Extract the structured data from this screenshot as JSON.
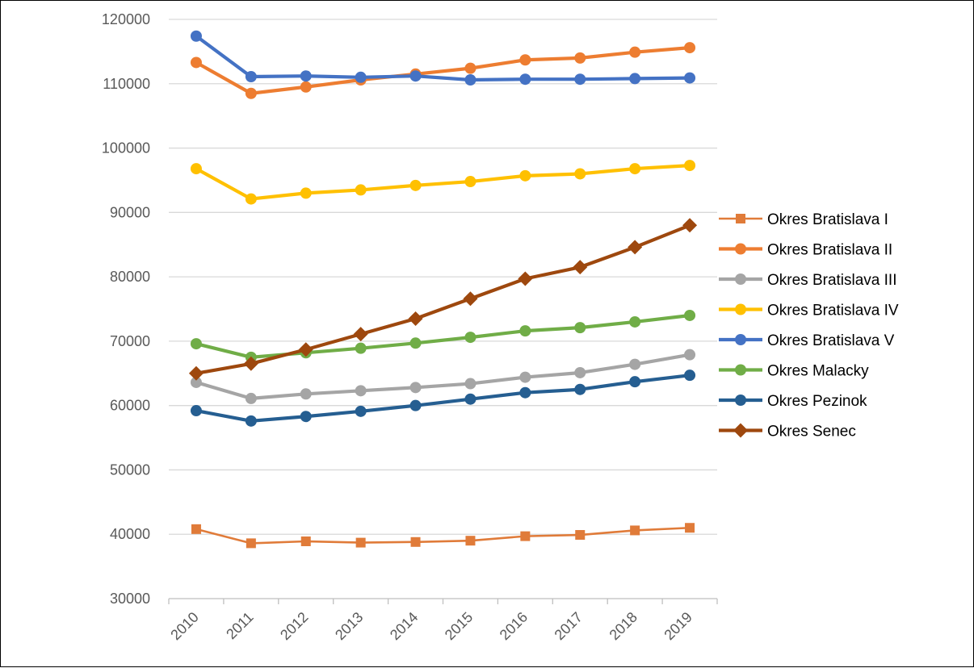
{
  "chart_data": {
    "type": "line",
    "title": "",
    "xlabel": "",
    "ylabel": "",
    "x": [
      "2010",
      "2011",
      "2012",
      "2013",
      "2014",
      "2015",
      "2016",
      "2017",
      "2018",
      "2019"
    ],
    "ylim": [
      30000,
      120000
    ],
    "ytick_step": 10000,
    "grid": true,
    "legend_position": "right",
    "series": [
      {
        "name": "Okres Bratislava I",
        "color": "#E07B39",
        "marker": "square",
        "width": "thin",
        "values": [
          40800,
          38600,
          38900,
          38700,
          38800,
          39000,
          39700,
          39900,
          40600,
          41000
        ]
      },
      {
        "name": "Okres Bratislava II",
        "color": "#ED7D31",
        "marker": "circle",
        "width": "thick",
        "values": [
          113300,
          108500,
          109500,
          110600,
          111500,
          112400,
          113700,
          114000,
          114900,
          115600
        ]
      },
      {
        "name": "Okres Bratislava III",
        "color": "#A5A5A5",
        "marker": "circle",
        "width": "thick",
        "values": [
          63600,
          61100,
          61800,
          62300,
          62800,
          63400,
          64400,
          65100,
          66400,
          67900
        ]
      },
      {
        "name": "Okres Bratislava IV",
        "color": "#FFC000",
        "marker": "circle",
        "width": "thick",
        "values": [
          96800,
          92100,
          93000,
          93500,
          94200,
          94800,
          95700,
          96000,
          96800,
          97300
        ]
      },
      {
        "name": "Okres Bratislava V",
        "color": "#4472C4",
        "marker": "circle",
        "width": "thick",
        "values": [
          117400,
          111100,
          111200,
          111000,
          111200,
          110600,
          110700,
          110700,
          110800,
          110900
        ]
      },
      {
        "name": "Okres Malacky",
        "color": "#70AD47",
        "marker": "circle",
        "width": "thick",
        "values": [
          69600,
          67500,
          68200,
          68900,
          69700,
          70600,
          71600,
          72100,
          73000,
          74000
        ]
      },
      {
        "name": "Okres Pezinok",
        "color": "#255E91",
        "marker": "circle",
        "width": "thick",
        "values": [
          59200,
          57600,
          58300,
          59100,
          60000,
          61000,
          62000,
          62500,
          63700,
          64700
        ]
      },
      {
        "name": "Okres Senec",
        "color": "#9E480E",
        "marker": "diamond",
        "width": "thick",
        "values": [
          65000,
          66500,
          68700,
          71100,
          73500,
          76600,
          79700,
          81500,
          84600,
          88000
        ]
      }
    ]
  }
}
